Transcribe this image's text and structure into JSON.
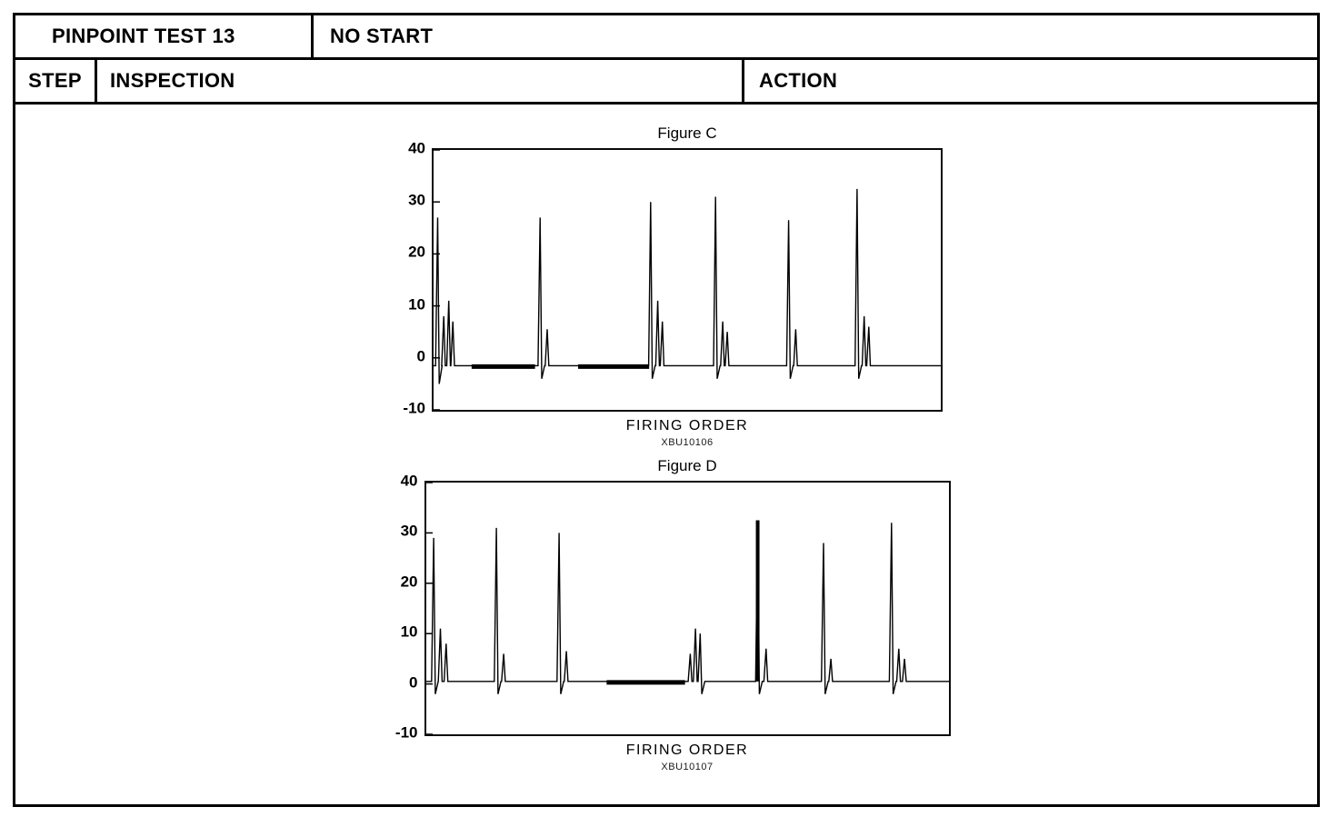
{
  "header": {
    "test_label": "PINPOINT TEST 13",
    "test_title": "NO START",
    "col_step": "STEP",
    "col_inspection": "INSPECTION",
    "col_action": "ACTION"
  },
  "chart_data": [
    {
      "type": "line",
      "title": "Figure C",
      "xlabel": "FIRING ORDER",
      "caption": "XBU10106",
      "ylabel": "",
      "ylim": [
        -10,
        40
      ],
      "yticks": [
        40,
        30,
        20,
        10,
        0,
        -10
      ],
      "grid": false,
      "legend": "none",
      "baseline": -1.5,
      "spikes": [
        {
          "x": 0.008,
          "peak": 27,
          "dip": -5
        },
        {
          "x": 0.02,
          "peak": 8
        },
        {
          "x": 0.03,
          "peak": 11
        },
        {
          "x": 0.038,
          "peak": 7
        },
        {
          "x": 0.21,
          "peak": 27,
          "dip": -4
        },
        {
          "x": 0.224,
          "peak": 5.5
        },
        {
          "x": 0.428,
          "peak": 30,
          "dip": -4
        },
        {
          "x": 0.442,
          "peak": 11
        },
        {
          "x": 0.451,
          "peak": 7
        },
        {
          "x": 0.556,
          "peak": 31,
          "dip": -4
        },
        {
          "x": 0.57,
          "peak": 7
        },
        {
          "x": 0.579,
          "peak": 5
        },
        {
          "x": 0.7,
          "peak": 26.5,
          "dip": -4
        },
        {
          "x": 0.714,
          "peak": 5.5
        },
        {
          "x": 0.835,
          "peak": 32.5,
          "dip": -4
        },
        {
          "x": 0.849,
          "peak": 8
        },
        {
          "x": 0.858,
          "peak": 6
        }
      ],
      "thick_segments": [
        [
          0.075,
          0.2
        ],
        [
          0.285,
          0.425
        ]
      ]
    },
    {
      "type": "line",
      "title": "Figure D",
      "xlabel": "FIRING ORDER",
      "caption": "XBU10107",
      "ylabel": "",
      "ylim": [
        -10,
        40
      ],
      "yticks": [
        40,
        30,
        20,
        10,
        0,
        -10
      ],
      "grid": false,
      "legend": "none",
      "baseline": 0.5,
      "spikes": [
        {
          "x": 0.014,
          "peak": 29,
          "dip": -2
        },
        {
          "x": 0.027,
          "peak": 11
        },
        {
          "x": 0.038,
          "peak": 8
        },
        {
          "x": 0.134,
          "peak": 31,
          "dip": -2
        },
        {
          "x": 0.148,
          "peak": 6
        },
        {
          "x": 0.254,
          "peak": 30,
          "dip": -2
        },
        {
          "x": 0.268,
          "peak": 6.5
        },
        {
          "x": 0.505,
          "peak": 6
        },
        {
          "x": 0.515,
          "peak": 11
        },
        {
          "x": 0.524,
          "peak": 10,
          "dip": -2
        },
        {
          "x": 0.634,
          "peak": 32.5,
          "dip": -2,
          "thick": true
        },
        {
          "x": 0.65,
          "peak": 7
        },
        {
          "x": 0.76,
          "peak": 28,
          "dip": -2
        },
        {
          "x": 0.774,
          "peak": 5
        },
        {
          "x": 0.89,
          "peak": 32,
          "dip": -2
        },
        {
          "x": 0.904,
          "peak": 7
        },
        {
          "x": 0.915,
          "peak": 5
        }
      ],
      "thick_segments": [
        [
          0.345,
          0.495
        ]
      ]
    }
  ]
}
